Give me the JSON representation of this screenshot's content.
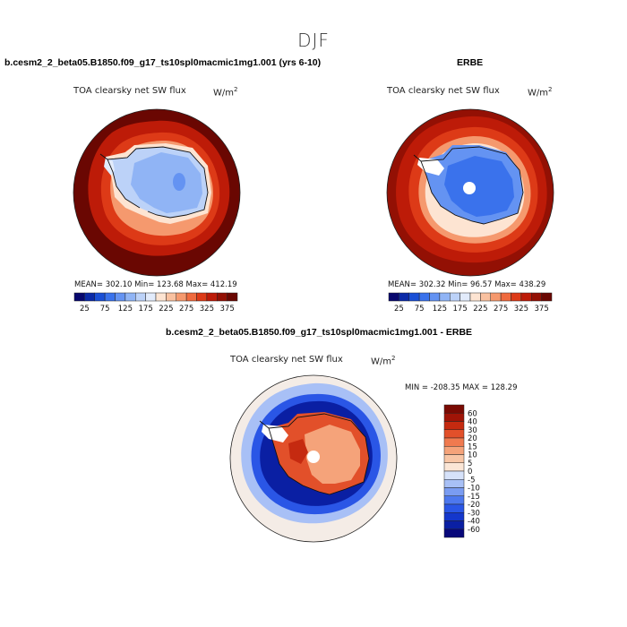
{
  "figure": {
    "season": "DJF",
    "units_html": "W/m²"
  },
  "panels": [
    {
      "title": "b.cesm2_2_beta05.B1850.f09_g17_ts10spl0macmic1mg1.001 (yrs 6-10)",
      "subtitle": "TOA clearsky net SW flux",
      "units": "W/m",
      "units_sup": "2",
      "stats": "MEAN= 302.10   Min= 123.68   Max= 412.19"
    },
    {
      "title": "ERBE",
      "subtitle": "TOA clearsky net SW flux",
      "units": "W/m",
      "units_sup": "2",
      "stats": "MEAN= 302.32   Min=  96.57   Max= 438.29"
    },
    {
      "title": "b.cesm2_2_beta05.B1850.f09_g17_ts10spl0macmic1mg1.001 - ERBE",
      "subtitle": "TOA clearsky net SW flux",
      "units": "W/m",
      "units_sup": "2",
      "stats": "MIN = -208.35  MAX = 128.29"
    }
  ],
  "chart_data": [
    {
      "type": "heatmap",
      "title": "b.cesm2_2_beta05.B1850.f09_g17_ts10spl0macmic1mg1.001 (yrs 6-10)",
      "subtitle": "TOA clearsky net SW flux",
      "projection": "south polar stereographic",
      "stats": {
        "mean": 302.1,
        "min": 123.68,
        "max": 412.19
      },
      "colorbar": {
        "orientation": "horizontal",
        "levels": [
          25,
          50,
          75,
          100,
          125,
          150,
          175,
          200,
          225,
          250,
          275,
          300,
          325,
          350,
          375
        ],
        "tick_labels": [
          "25",
          "75",
          "125",
          "175",
          "225",
          "275",
          "325",
          "375"
        ],
        "colors": [
          "#08086e",
          "#0b2aa8",
          "#1a4fd6",
          "#3a72ec",
          "#6493f2",
          "#90b4f5",
          "#bcd2f8",
          "#e2ebfb",
          "#fde4d2",
          "#f9c1a0",
          "#f5996e",
          "#ef6a3e",
          "#dd3a17",
          "#bd1b08",
          "#931004",
          "#6a0702"
        ]
      },
      "regions": [
        {
          "region": "Antarctic ice sheet interior",
          "value_range": [
            125,
            175
          ]
        },
        {
          "region": "Antarctic coastal fringe",
          "value_range": [
            175,
            225
          ]
        },
        {
          "region": "sea ice zone",
          "value_range": [
            225,
            325
          ]
        },
        {
          "region": "open Southern Ocean",
          "value_range": [
            375,
            412
          ]
        }
      ]
    },
    {
      "type": "heatmap",
      "title": "ERBE",
      "subtitle": "TOA clearsky net SW flux",
      "projection": "south polar stereographic",
      "stats": {
        "mean": 302.32,
        "min": 96.57,
        "max": 438.29
      },
      "colorbar": {
        "orientation": "horizontal",
        "levels": [
          25,
          50,
          75,
          100,
          125,
          150,
          175,
          200,
          225,
          250,
          275,
          300,
          325,
          350,
          375
        ],
        "tick_labels": [
          "25",
          "75",
          "125",
          "175",
          "225",
          "275",
          "325",
          "375"
        ],
        "colors": [
          "#08086e",
          "#0b2aa8",
          "#1a4fd6",
          "#3a72ec",
          "#6493f2",
          "#90b4f5",
          "#bcd2f8",
          "#e2ebfb",
          "#fde4d2",
          "#f9c1a0",
          "#f5996e",
          "#ef6a3e",
          "#dd3a17",
          "#bd1b08",
          "#931004",
          "#6a0702"
        ]
      },
      "regions": [
        {
          "region": "Antarctic ice sheet interior",
          "value_range": [
            100,
            150
          ]
        },
        {
          "region": "sea ice zone",
          "value_range": [
            225,
            350
          ]
        },
        {
          "region": "open Southern Ocean",
          "value_range": [
            375,
            438
          ]
        },
        {
          "region": "missing data (pole, Antarctic Peninsula)",
          "value_range": null
        }
      ]
    },
    {
      "type": "heatmap",
      "title": "b.cesm2_2_beta05.B1850.f09_g17_ts10spl0macmic1mg1.001 - ERBE",
      "subtitle": "TOA clearsky net SW flux",
      "projection": "south polar stereographic",
      "stats": {
        "min": -208.35,
        "max": 128.29
      },
      "colorbar": {
        "orientation": "vertical",
        "levels": [
          -60,
          -40,
          -30,
          -20,
          -15,
          -10,
          -5,
          0,
          5,
          10,
          15,
          20,
          30,
          40,
          60
        ],
        "tick_labels": [
          "60",
          "40",
          "30",
          "20",
          "15",
          "10",
          "5",
          "0",
          "-5",
          "-10",
          "-15",
          "-20",
          "-30",
          "-40",
          "-60"
        ],
        "colors": [
          "#08087a",
          "#0a1fa3",
          "#1437cc",
          "#2a56e6",
          "#4d78ee",
          "#7a9cf2",
          "#a8c0f6",
          "#d6e2fa",
          "#fbe6d6",
          "#f8c6a6",
          "#f5a37a",
          "#f07a4f",
          "#e2502a",
          "#c52a10",
          "#a01407",
          "#7a0a03"
        ]
      },
      "regions": [
        {
          "region": "Antarctic continent",
          "value_range": [
            10,
            40
          ]
        },
        {
          "region": "sea ice edge ring",
          "value_range": [
            -60,
            -20
          ]
        },
        {
          "region": "open ocean",
          "value_range": [
            -10,
            10
          ]
        }
      ]
    }
  ]
}
